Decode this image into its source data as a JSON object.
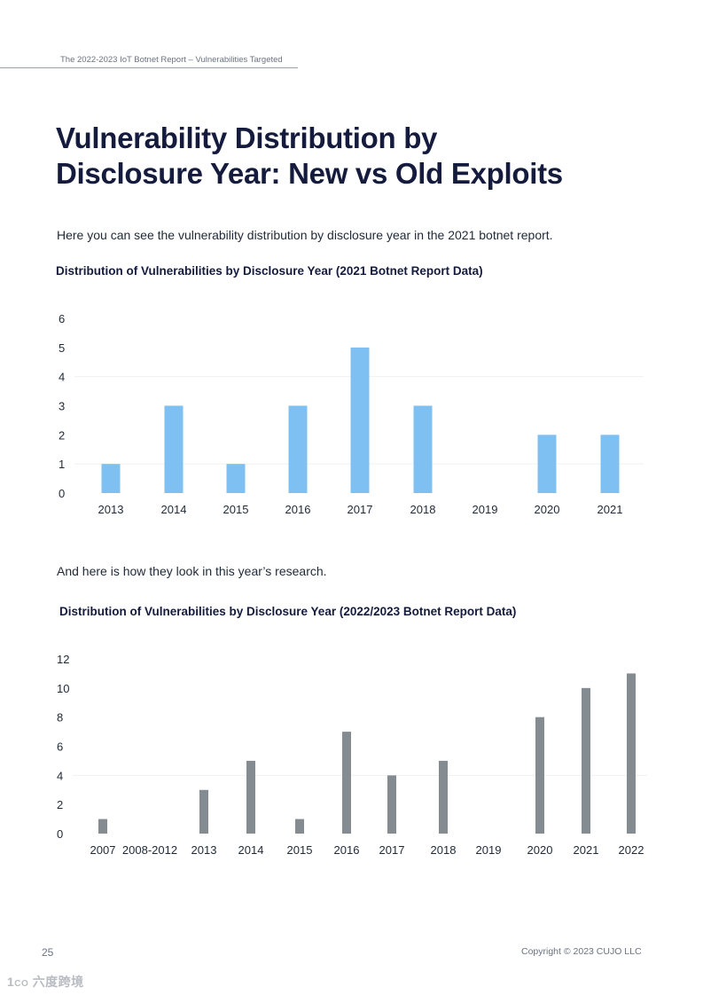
{
  "header": {
    "text": "The 2022-2023 IoT Botnet Report – Vulnerabilities Targeted"
  },
  "title": {
    "line1": "Vulnerability Distribution by",
    "line2": "Disclosure Year: New vs Old Exploits"
  },
  "intro": "Here you can see the vulnerability distribution by disclosure year in the 2021 botnet report.",
  "transition": "And here is how they look in this year’s research.",
  "chart_data": [
    {
      "type": "bar",
      "title": "Distribution of Vulnerabilities by Disclosure Year (2021 Botnet Report Data)",
      "categories": [
        "2013",
        "2014",
        "2015",
        "2016",
        "2017",
        "2018",
        "2019",
        "2020",
        "2021"
      ],
      "values": [
        1,
        3,
        1,
        3,
        5,
        3,
        0,
        2,
        2
      ],
      "yticks": [
        0,
        1,
        2,
        3,
        4,
        5,
        6
      ],
      "ylim": [
        0,
        6
      ],
      "xlabel": "",
      "ylabel": "",
      "color": "#7fc0f3"
    },
    {
      "type": "bar",
      "title": "Distribution of Vulnerabilities by Disclosure Year (2022/2023 Botnet Report Data)",
      "categories": [
        "2007",
        "2008-2012",
        "2013",
        "2014",
        "2015",
        "2016",
        "2017",
        "2018",
        "2019",
        "2020",
        "2021",
        "2022"
      ],
      "values": [
        1,
        0,
        3,
        5,
        1,
        7,
        4,
        5,
        0,
        8,
        10,
        11
      ],
      "yticks": [
        0,
        2,
        4,
        6,
        8,
        10,
        12
      ],
      "ylim": [
        0,
        12
      ],
      "xlabel": "",
      "ylabel": "",
      "color": "#858c91"
    }
  ],
  "footer": {
    "page_number": "25",
    "copyright": "Copyright © 2023 CUJO LLC"
  },
  "watermark": "六度跨境"
}
